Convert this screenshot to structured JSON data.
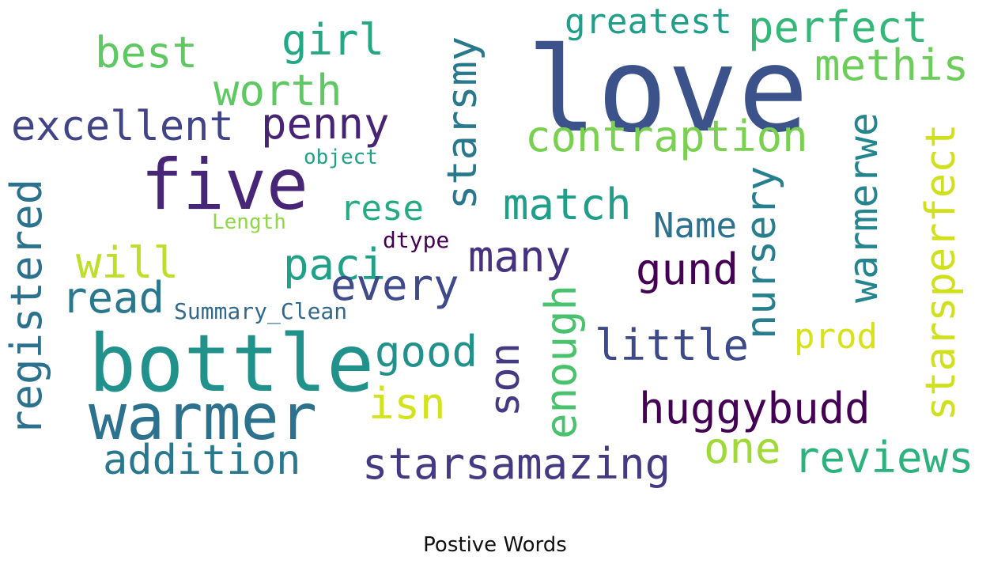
{
  "caption": "Postive Words",
  "words": [
    {
      "text": "love",
      "color": "#3b528b"
    },
    {
      "text": "bottle",
      "color": "#21918c"
    },
    {
      "text": "warmer",
      "color": "#2c728e"
    },
    {
      "text": "five",
      "color": "#482677"
    },
    {
      "text": "excellent",
      "color": "#414487"
    },
    {
      "text": "best",
      "color": "#5ec962"
    },
    {
      "text": "girl",
      "color": "#22a884"
    },
    {
      "text": "worth",
      "color": "#5ec962"
    },
    {
      "text": "penny",
      "color": "#482475"
    },
    {
      "text": "greatest",
      "color": "#1f9e89"
    },
    {
      "text": "perfect",
      "color": "#35b779"
    },
    {
      "text": "methis",
      "color": "#6ccd5a"
    },
    {
      "text": "contraption",
      "color": "#7ad151"
    },
    {
      "text": "starsmy",
      "color": "#2a788e"
    },
    {
      "text": "object",
      "color": "#1fa187"
    },
    {
      "text": "registered",
      "color": "#2c728e"
    },
    {
      "text": "Length",
      "color": "#8fd744"
    },
    {
      "text": "rese",
      "color": "#25ab82"
    },
    {
      "text": "match",
      "color": "#1f9e89"
    },
    {
      "text": "Name",
      "color": "#2c728e"
    },
    {
      "text": "nursery",
      "color": "#277f8e"
    },
    {
      "text": "warmerwe",
      "color": "#25858e"
    },
    {
      "text": "starsperfect",
      "color": "#d0e11c"
    },
    {
      "text": "will",
      "color": "#bddf26"
    },
    {
      "text": "dtype",
      "color": "#440154"
    },
    {
      "text": "paci",
      "color": "#1fa187"
    },
    {
      "text": "many",
      "color": "#46327e"
    },
    {
      "text": "gund",
      "color": "#440154"
    },
    {
      "text": "every",
      "color": "#3e4a89"
    },
    {
      "text": "read",
      "color": "#2a788e"
    },
    {
      "text": "Summary_Clean",
      "color": "#31688e"
    },
    {
      "text": "prod",
      "color": "#d8e219"
    },
    {
      "text": "good",
      "color": "#21918c"
    },
    {
      "text": "son",
      "color": "#443983"
    },
    {
      "text": "enough",
      "color": "#4ac16d"
    },
    {
      "text": "little",
      "color": "#3e4989"
    },
    {
      "text": "isn",
      "color": "#d2e21b"
    },
    {
      "text": "huggybudd",
      "color": "#440154"
    },
    {
      "text": "addition",
      "color": "#2a788e"
    },
    {
      "text": "starsamazing",
      "color": "#443983"
    },
    {
      "text": "one",
      "color": "#a0da39"
    },
    {
      "text": "reviews",
      "color": "#2db27d"
    }
  ]
}
